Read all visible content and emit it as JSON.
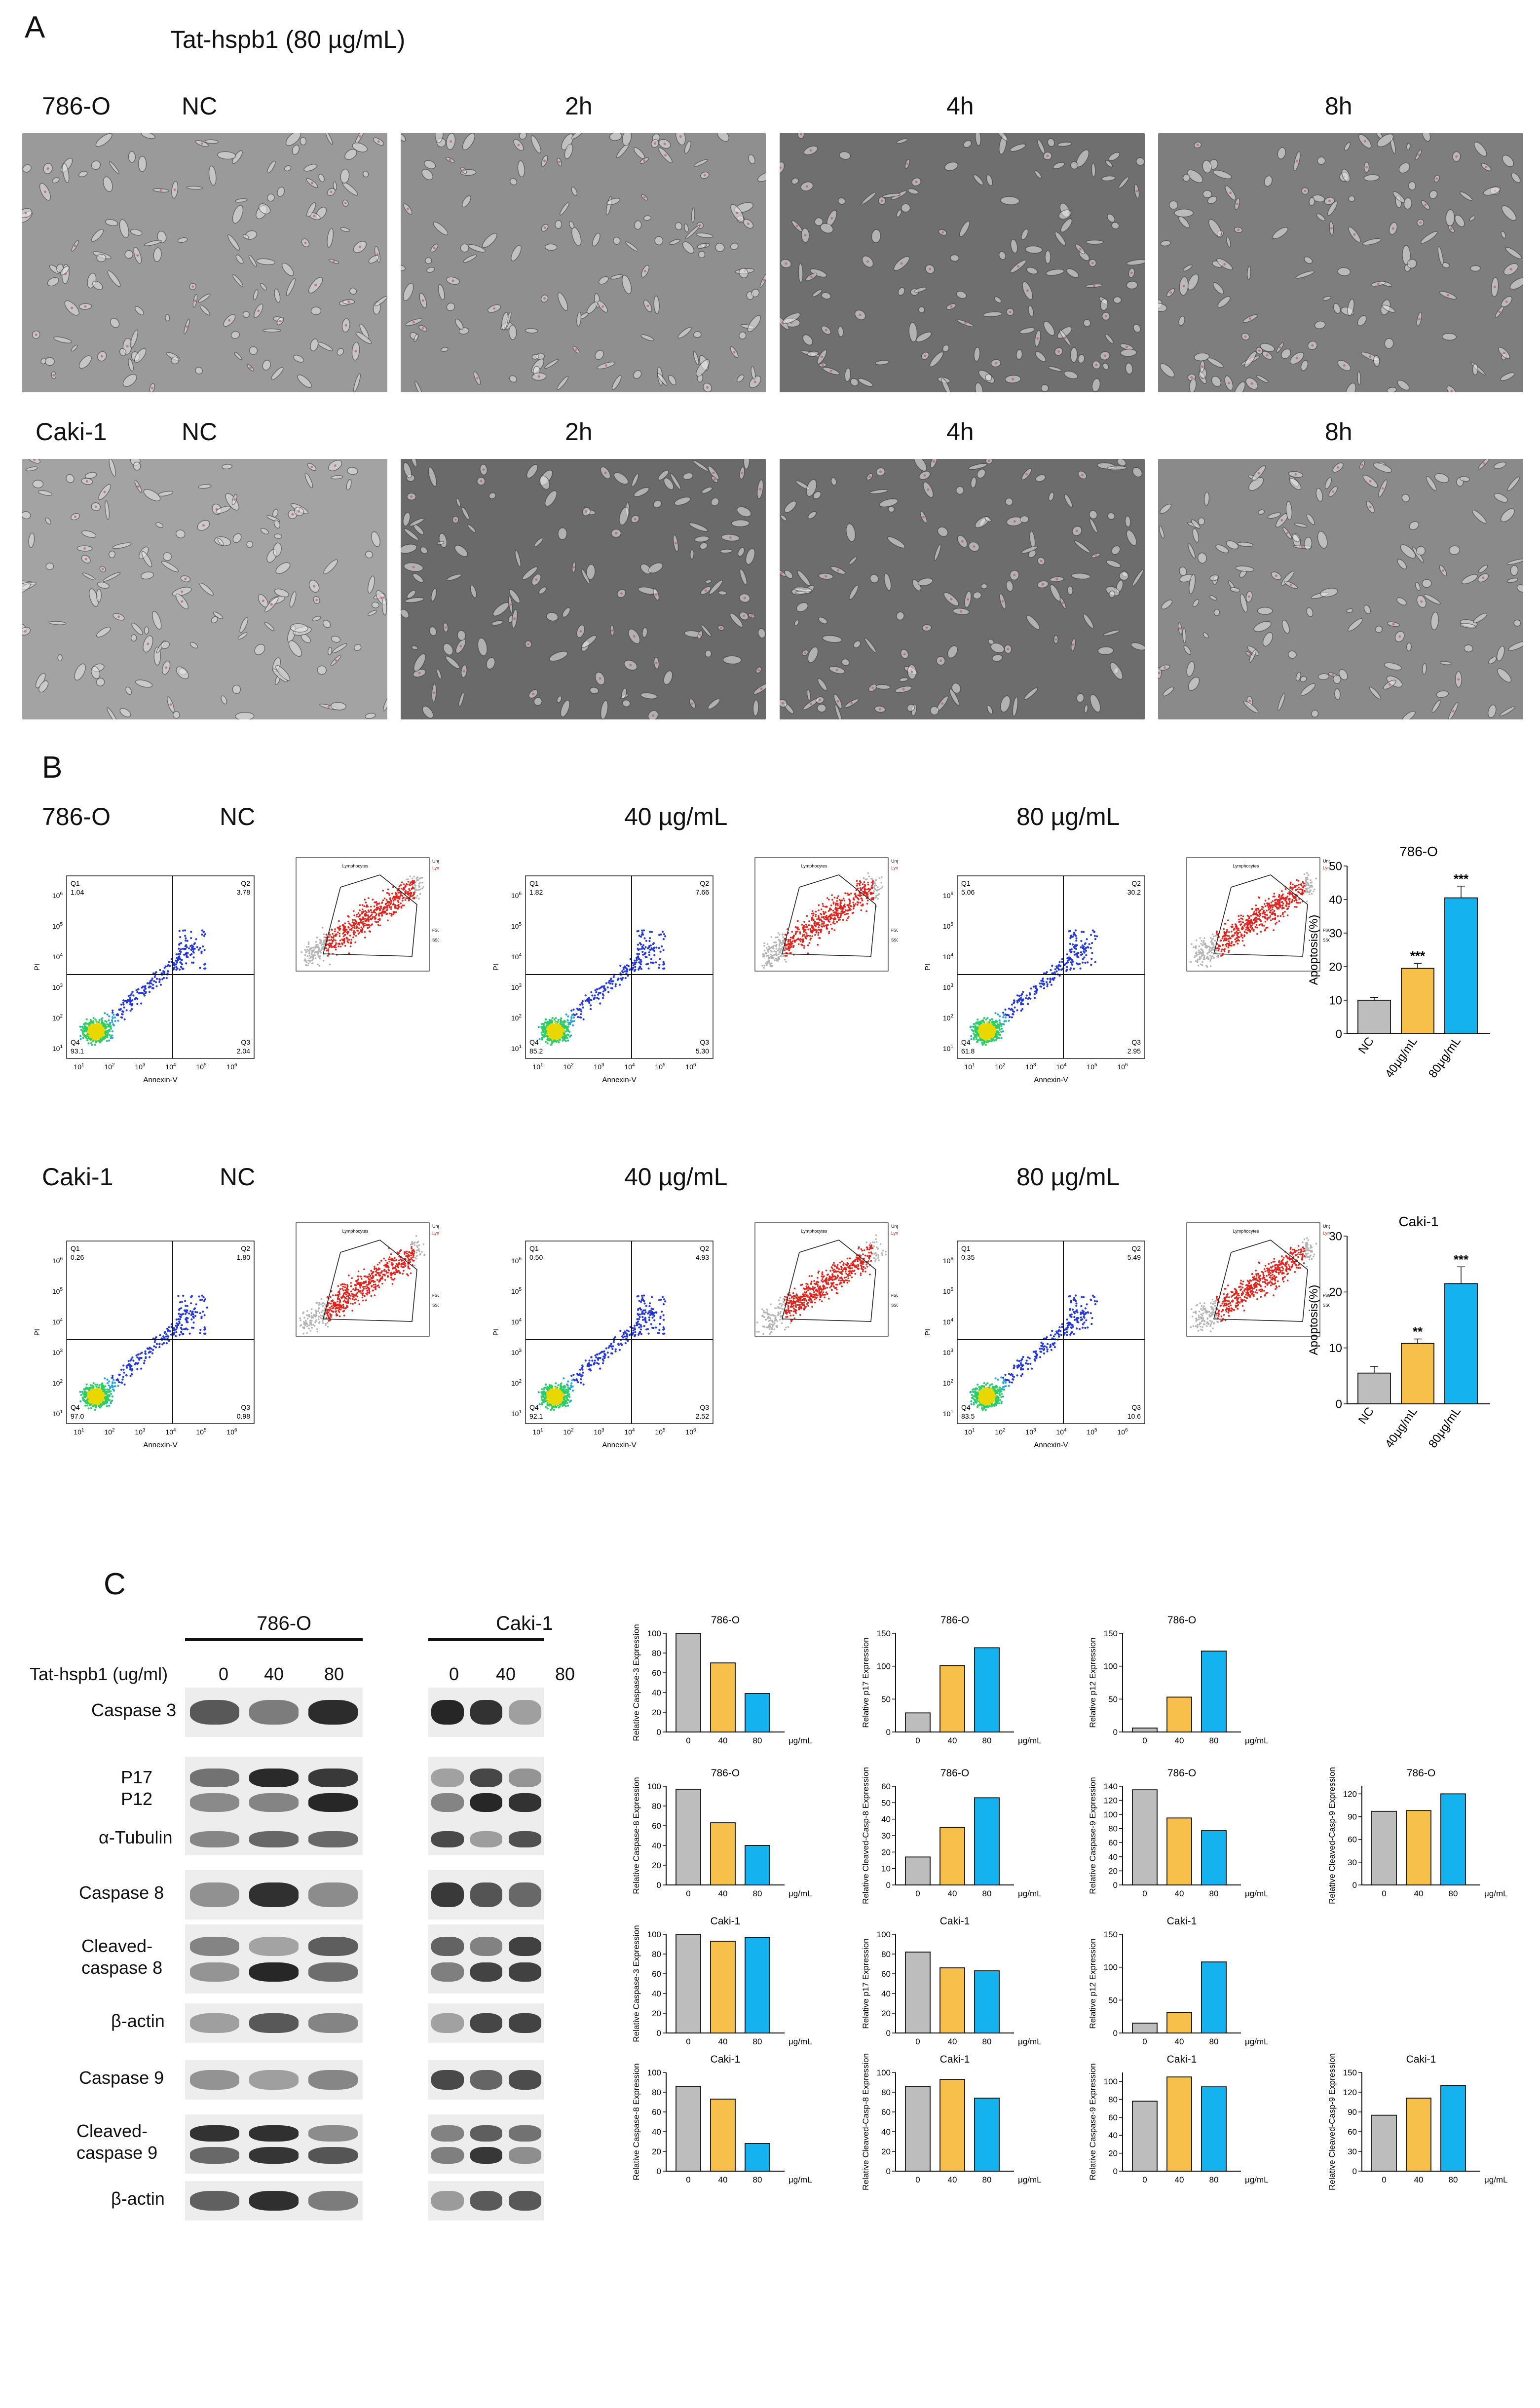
{
  "panelA": {
    "letter": "A",
    "treatment_title": "Tat-hspb1 (80 µg/mL)",
    "rows": [
      {
        "cell_line": "786-O",
        "timepoints": [
          "NC",
          "2h",
          "4h",
          "8h"
        ]
      },
      {
        "cell_line": "Caki-1",
        "timepoints": [
          "NC",
          "2h",
          "4h",
          "8h"
        ]
      }
    ]
  },
  "panelB": {
    "letter": "B",
    "rows": [
      {
        "cell_line": "786-O",
        "conditions": [
          "NC",
          "40 µg/mL",
          "80 µg/mL"
        ],
        "quadrants": [
          {
            "q1_label": "Q1",
            "q1": "1.04",
            "q2_label": "Q2",
            "q2": "3.78",
            "q3_label": "Q3",
            "q3": "2.04",
            "q4_label": "Q4",
            "q4": "93.1"
          },
          {
            "q1_label": "Q1",
            "q1": "1.82",
            "q2_label": "Q2",
            "q2": "7.66",
            "q3_label": "Q3",
            "q3": "5.30",
            "q4_label": "Q4",
            "q4": "85.2"
          },
          {
            "q1_label": "Q1",
            "q1": "5.06",
            "q2_label": "Q2",
            "q2": "30.2",
            "q3_label": "Q3",
            "q3": "2.95",
            "q4_label": "Q4",
            "q4": "61.8"
          }
        ]
      },
      {
        "cell_line": "Caki-1",
        "conditions": [
          "NC",
          "40 µg/mL",
          "80 µg/mL"
        ],
        "quadrants": [
          {
            "q1_label": "Q1",
            "q1": "0.26",
            "q2_label": "Q2",
            "q2": "1.80",
            "q3_label": "Q3",
            "q3": "0.98",
            "q4_label": "Q4",
            "q4": "97.0"
          },
          {
            "q1_label": "Q1",
            "q1": "0.50",
            "q2_label": "Q2",
            "q2": "4.93",
            "q3_label": "Q3",
            "q3": "2.52",
            "q4_label": "Q4",
            "q4": "92.1"
          },
          {
            "q1_label": "Q1",
            "q1": "0.35",
            "q2_label": "Q2",
            "q2": "5.49",
            "q3_label": "Q3",
            "q3": "10.6",
            "q4_label": "Q4",
            "q4": "83.5"
          }
        ]
      }
    ],
    "flow_axis": {
      "x_label": "Annexin-V",
      "y_label": "PI",
      "tick_base": "10",
      "tick_exps": [
        "1",
        "2",
        "3",
        "4",
        "5",
        "6"
      ]
    },
    "inset": {
      "ungated": "Ungated",
      "lymphocytes": "Lymphocytes",
      "fsc": "FSC-A",
      "ssc": "SSC-A"
    },
    "colors": {
      "ungated": "#b5b5b5",
      "gated": "#e0231d"
    }
  },
  "panelC": {
    "letter": "C",
    "treatment_label": "Tat-hspb1  (ug/ml)",
    "blot_groups": [
      {
        "cell_line": "786-O",
        "doses": [
          "0",
          "40",
          "80"
        ]
      },
      {
        "cell_line": "Caki-1",
        "doses": [
          "0",
          "40",
          "80"
        ]
      }
    ],
    "blot_rows": [
      {
        "label_lines": [
          "Caspase 3"
        ]
      },
      {
        "label_lines": [
          "P17",
          "P12"
        ]
      },
      {
        "label_lines": [
          "α-Tubulin"
        ]
      },
      {
        "label_lines": [
          "Caspase 8"
        ]
      },
      {
        "label_lines": [
          "Cleaved-",
          "caspase 8"
        ]
      },
      {
        "label_lines": [
          "β-actin"
        ]
      },
      {
        "label_lines": [
          "Caspase 9"
        ]
      },
      {
        "label_lines": [
          "Cleaved-",
          "caspase 9"
        ]
      },
      {
        "label_lines": [
          "β-actin"
        ]
      }
    ]
  },
  "colors": {
    "gray": "#bdbdbd",
    "orange": "#f7c04a",
    "blue": "#14b2ee",
    "text": "#111111"
  },
  "chart_data": [
    {
      "type": "bar",
      "title": "786-O",
      "xlabel": "",
      "ylabel": "Apoptosis(%)",
      "categories": [
        "NC",
        "40μg/mL",
        "80μg/mL"
      ],
      "values": [
        10,
        19.5,
        40.5
      ],
      "errors": [
        0.8,
        1.5,
        3.5
      ],
      "significance": [
        "",
        "***",
        "***"
      ],
      "ylim": [
        0,
        50
      ],
      "yticks": [
        0,
        10,
        20,
        30,
        40,
        50
      ]
    },
    {
      "type": "bar",
      "title": "Caki-1",
      "xlabel": "",
      "ylabel": "Apoptosis(%)",
      "categories": [
        "NC",
        "40μg/mL",
        "80μg/mL"
      ],
      "values": [
        5.5,
        10.8,
        21.5
      ],
      "errors": [
        1.2,
        0.8,
        3.0
      ],
      "significance": [
        "",
        "**",
        "***"
      ],
      "ylim": [
        0,
        30
      ],
      "yticks": [
        0,
        10,
        20,
        30
      ]
    },
    {
      "type": "bar",
      "title": "786-O",
      "ylabel": "Relative Caspase-3 Expression",
      "unit": "μg/mL",
      "categories": [
        "0",
        "40",
        "80"
      ],
      "values": [
        100,
        70,
        39
      ],
      "ylim": [
        0,
        100
      ],
      "yticks": [
        0,
        20,
        40,
        60,
        80,
        100
      ]
    },
    {
      "type": "bar",
      "title": "786-O",
      "ylabel": "Relative p17 Expression",
      "unit": "μg/mL",
      "categories": [
        "0",
        "40",
        "80"
      ],
      "values": [
        29,
        101,
        128
      ],
      "ylim": [
        0,
        150
      ],
      "yticks": [
        0,
        50,
        100,
        150
      ]
    },
    {
      "type": "bar",
      "title": "786-O",
      "ylabel": "Relative p12 Expression",
      "unit": "μg/mL",
      "categories": [
        "0",
        "40",
        "80"
      ],
      "values": [
        6,
        53,
        123
      ],
      "ylim": [
        0,
        150
      ],
      "yticks": [
        0,
        50,
        100,
        150
      ]
    },
    {
      "type": "bar",
      "title": "786-O",
      "ylabel": "Relative Caspase-8 Expression",
      "unit": "μg/mL",
      "categories": [
        "0",
        "40",
        "80"
      ],
      "values": [
        97,
        63,
        40
      ],
      "ylim": [
        0,
        100
      ],
      "yticks": [
        0,
        20,
        40,
        60,
        80,
        100
      ]
    },
    {
      "type": "bar",
      "title": "786-O",
      "ylabel": "Relative Cleaved-Casp-8 Expression",
      "unit": "μg/mL",
      "categories": [
        "0",
        "40",
        "80"
      ],
      "values": [
        17,
        35,
        53
      ],
      "ylim": [
        0,
        60
      ],
      "yticks": [
        0,
        10,
        20,
        30,
        40,
        50,
        60
      ]
    },
    {
      "type": "bar",
      "title": "786-O",
      "ylabel": "Relative Caspase-9 Expression",
      "unit": "μg/mL",
      "categories": [
        "0",
        "40",
        "80"
      ],
      "values": [
        135,
        95,
        77
      ],
      "ylim": [
        0,
        140
      ],
      "yticks": [
        0,
        20,
        40,
        60,
        80,
        100,
        120,
        140
      ]
    },
    {
      "type": "bar",
      "title": "786-O",
      "ylabel": "Relative Cleaved-Casp-9 Expression",
      "unit": "μg/mL",
      "categories": [
        "0",
        "40",
        "80"
      ],
      "values": [
        97,
        98,
        120
      ],
      "ylim": [
        0,
        130
      ],
      "yticks": [
        0,
        30,
        60,
        90,
        120
      ]
    },
    {
      "type": "bar",
      "title": "Caki-1",
      "ylabel": "Relative Caspase-3 Expression",
      "unit": "μg/mL",
      "categories": [
        "0",
        "40",
        "80"
      ],
      "values": [
        100,
        93,
        97
      ],
      "ylim": [
        0,
        100
      ],
      "yticks": [
        0,
        20,
        40,
        60,
        80,
        100
      ]
    },
    {
      "type": "bar",
      "title": "Caki-1",
      "ylabel": "Relative p17 Expression",
      "unit": "μg/mL",
      "categories": [
        "0",
        "40",
        "80"
      ],
      "values": [
        82,
        66,
        63
      ],
      "ylim": [
        0,
        100
      ],
      "yticks": [
        0,
        20,
        40,
        60,
        80,
        100
      ]
    },
    {
      "type": "bar",
      "title": "Caki-1",
      "ylabel": "Relative p12 Expression",
      "unit": "μg/mL",
      "categories": [
        "0",
        "40",
        "80"
      ],
      "values": [
        15,
        31,
        108
      ],
      "ylim": [
        0,
        150
      ],
      "yticks": [
        0,
        50,
        100,
        150
      ]
    },
    {
      "type": "bar",
      "title": "Caki-1",
      "ylabel": "Relative Caspase-8 Expression",
      "unit": "μg/mL",
      "categories": [
        "0",
        "40",
        "80"
      ],
      "values": [
        86,
        73,
        28
      ],
      "ylim": [
        0,
        100
      ],
      "yticks": [
        0,
        20,
        40,
        60,
        80,
        100
      ]
    },
    {
      "type": "bar",
      "title": "Caki-1",
      "ylabel": "Relative Cleaved-Casp-8 Expression",
      "unit": "μg/mL",
      "categories": [
        "0",
        "40",
        "80"
      ],
      "values": [
        86,
        93,
        74
      ],
      "ylim": [
        0,
        100
      ],
      "yticks": [
        0,
        20,
        40,
        60,
        80,
        100
      ]
    },
    {
      "type": "bar",
      "title": "Caki-1",
      "ylabel": "Relative Caspase-9 Expression",
      "unit": "μg/mL",
      "categories": [
        "0",
        "40",
        "80"
      ],
      "values": [
        78,
        105,
        94
      ],
      "ylim": [
        0,
        110
      ],
      "yticks": [
        0,
        20,
        40,
        60,
        80,
        100
      ]
    },
    {
      "type": "bar",
      "title": "Caki-1",
      "ylabel": "Relative Cleaved-Casp-9 Expression",
      "unit": "μg/mL",
      "categories": [
        "0",
        "40",
        "80"
      ],
      "values": [
        85,
        111,
        130
      ],
      "ylim": [
        0,
        150
      ],
      "yticks": [
        0,
        30,
        60,
        90,
        120,
        150
      ]
    }
  ]
}
